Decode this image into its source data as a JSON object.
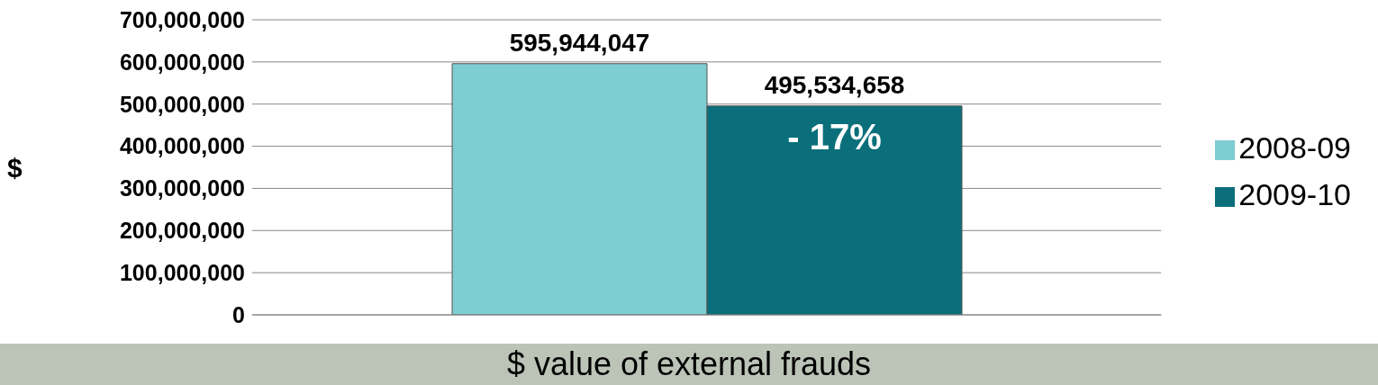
{
  "chart_data": {
    "type": "bar",
    "xlabel": "$ value of external frauds",
    "ylabel": "$",
    "categories": [
      null
    ],
    "series": [
      {
        "name": "2008-09",
        "color": "#7ecdd2",
        "values": [
          595944047
        ],
        "value_labels": [
          "595,944,047"
        ]
      },
      {
        "name": "2009-10",
        "color": "#0a6f7a",
        "values": [
          495534658
        ],
        "value_labels": [
          "495,534,658"
        ]
      }
    ],
    "ylim": [
      0,
      700000000
    ],
    "yticks": [
      {
        "value": 0,
        "label": "0"
      },
      {
        "value": 100000000,
        "label": "100,000,000"
      },
      {
        "value": 200000000,
        "label": "200,000,000"
      },
      {
        "value": 300000000,
        "label": "300,000,000"
      },
      {
        "value": 400000000,
        "label": "400,000,000"
      },
      {
        "value": 500000000,
        "label": "500,000,000"
      },
      {
        "value": 600000000,
        "label": "600,000,000"
      },
      {
        "value": 700000000,
        "label": "700,000,000"
      }
    ],
    "grid": "y",
    "legend": "right",
    "annotations": [
      "- 17%"
    ]
  }
}
